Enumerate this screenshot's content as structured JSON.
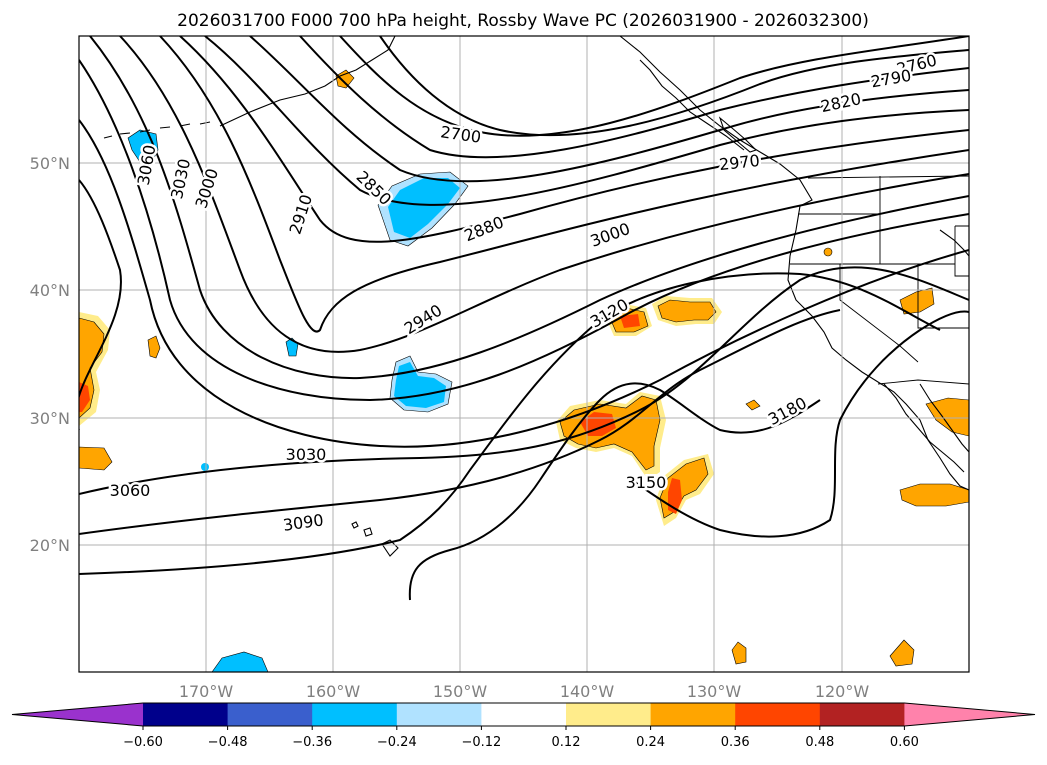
{
  "title": "2026031700 F000 700 hPa height, Rossby Wave PC (2026031900 - 2026032300)",
  "longitude_labels": [
    "170°W",
    "160°W",
    "150°W",
    "140°W",
    "130°W",
    "120°W"
  ],
  "latitude_labels": [
    "50°N",
    "40°N",
    "30°N",
    "20°N"
  ],
  "contour_labels": {
    "c2700": "2700",
    "c2760": "2760",
    "c2790": "2790",
    "c2820": "2820",
    "c2850": "2850",
    "c2880": "2880",
    "c2910": "2910",
    "c2940": "2940",
    "c2970": "2970",
    "c3000a": "3000",
    "c3000b": "3000",
    "c3030a": "3030",
    "c3030b": "3030",
    "c3060a": "3060",
    "c3060b": "3060",
    "c3090": "3090",
    "c3120": "3120",
    "c3150": "3150",
    "c3180": "3180"
  },
  "colorbar": {
    "ticks": [
      "−0.60",
      "−0.48",
      "−0.36",
      "−0.24",
      "−0.12",
      "0.12",
      "0.24",
      "0.36",
      "0.48",
      "0.60"
    ],
    "colors": [
      "#9a32cd",
      "#00008b",
      "#3a5fcd",
      "#00bfff",
      "#b0e2ff",
      "#ffffff",
      "#ffec8b",
      "#ffa500",
      "#ff4500",
      "#b22222",
      "#ff82ab"
    ]
  },
  "colors": {
    "pos_light": "#ffec8b",
    "pos_mid": "#ffa500",
    "pos_high": "#ff4500",
    "neg_light": "#b0e2ff",
    "neg_mid": "#00bfff"
  }
}
